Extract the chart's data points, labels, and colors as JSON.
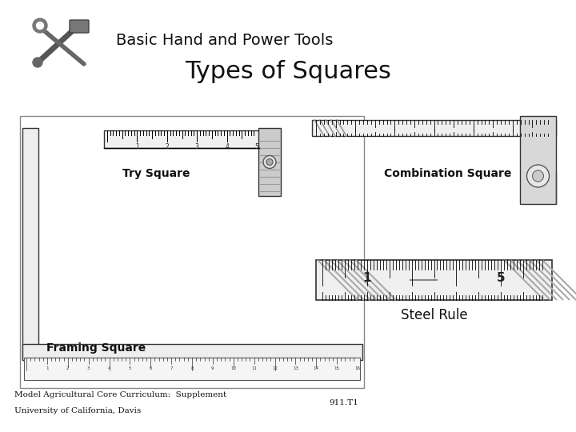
{
  "title_main": "Basic Hand and Power Tools",
  "title_sub": "Types of Squares",
  "bg_color": "#ffffff",
  "footer_left_line1": "Model Agricultural Core Curriculum:  Supplement",
  "footer_left_line2": "University of California, Davis",
  "footer_right": "911.T1",
  "title_main_fontsize": 14,
  "title_sub_fontsize": 22,
  "label_fontsize": 10,
  "footer_fontsize": 7.5
}
